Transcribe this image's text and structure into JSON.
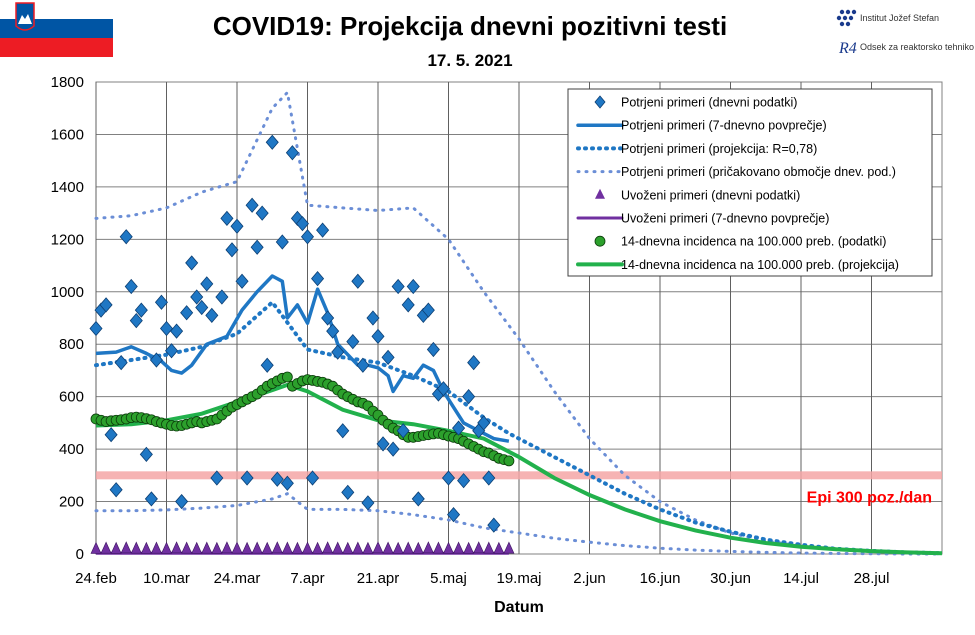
{
  "header": {
    "title": "COVID19: Projekcija dnevni pozitivni testi",
    "date": "17. 5. 2021",
    "institute": "Institut Jožef Stefan",
    "department": "Odsek za reaktorsko tehniko",
    "logo_mark": "R4"
  },
  "colors": {
    "blue": "#1f77c4",
    "light_blue": "#6b8ed6",
    "purple": "#7030a0",
    "green": "#22b14c",
    "green_marker": "#2ca02c",
    "threshold": "#f4a6a6",
    "threshold_text": "#ff0000"
  },
  "chart_data": {
    "type": "line",
    "title": "COVID19: Projekcija dnevni pozitivni testi",
    "subtitle": "17. 5. 2021",
    "xlabel": "Datum",
    "ylabel": "",
    "ylim": [
      0,
      1800
    ],
    "yticks": [
      0,
      200,
      400,
      600,
      800,
      1000,
      1200,
      1400,
      1600,
      1800
    ],
    "xlim": [
      "2021-02-24",
      "2021-08-11"
    ],
    "xticks": [
      "24.feb",
      "10.mar",
      "24.mar",
      "7.apr",
      "21.apr",
      "5.maj",
      "19.maj",
      "2.jun",
      "16.jun",
      "30.jun",
      "14.jul",
      "28.jul"
    ],
    "grid": true,
    "legend_position": "top-right",
    "threshold": {
      "value": 300,
      "label": "Epi 300 poz./dan"
    },
    "legend": [
      "Potrjeni primeri (dnevni podatki)",
      "Potrjeni primeri (7-dnevno povprečje)",
      "Potrjeni primeri (projekcija: R=0,78)",
      "Potrjeni primeri (pričakovano območje dnev. pod.)",
      "Uvoženi primeri (dnevni podatki)",
      "Uvoženi primeri (7-dnevno povprečje)",
      "14-dnevna incidenca na 100.000 preb. (podatki)",
      "14-dnevna incidenca na 100.000 preb. (projekcija)"
    ],
    "series": [
      {
        "name": "Potrjeni primeri (dnevni podatki)",
        "style": "diamond",
        "x_day": [
          0,
          1,
          2,
          3,
          4,
          5,
          6,
          7,
          8,
          9,
          10,
          11,
          12,
          13,
          14,
          15,
          16,
          17,
          18,
          19,
          20,
          21,
          22,
          23,
          24,
          25,
          26,
          27,
          28,
          29,
          30,
          31,
          32,
          33,
          34,
          35,
          36,
          37,
          38,
          39,
          40,
          41,
          42,
          43,
          44,
          45,
          46,
          47,
          48,
          49,
          50,
          51,
          52,
          53,
          54,
          55,
          56,
          57,
          58,
          59,
          60,
          61,
          62,
          63,
          64,
          65,
          66,
          67,
          68,
          69,
          70,
          71,
          72,
          73,
          74,
          75,
          76,
          77,
          78,
          79,
          80,
          81,
          82
        ],
        "values": [
          860,
          930,
          950,
          455,
          245,
          730,
          1210,
          1020,
          890,
          930,
          380,
          210,
          740,
          960,
          860,
          775,
          850,
          200,
          920,
          1110,
          980,
          940,
          1030,
          910,
          290,
          980,
          1280,
          1160,
          1250,
          1040,
          290,
          1330,
          1170,
          1300,
          720,
          1570,
          285,
          1190,
          270,
          1530,
          1280,
          1260,
          1210,
          290,
          1050,
          1235,
          900,
          850,
          770,
          470,
          235,
          810,
          1040,
          720,
          195,
          900,
          830,
          420,
          750,
          400,
          1020,
          470,
          950,
          1020,
          210,
          910,
          930,
          780,
          610,
          630,
          290,
          150,
          480,
          280,
          600,
          730,
          470,
          500,
          290,
          110,
          0,
          0,
          0
        ]
      },
      {
        "name": "Potrjeni primeri (7-dnevno povprečje)",
        "style": "line",
        "x_day": [
          0,
          4,
          7,
          10,
          13,
          15,
          17,
          19,
          22,
          26,
          29,
          32,
          35,
          37,
          38,
          40,
          42,
          44,
          46,
          48,
          50,
          52,
          54,
          56,
          58,
          59,
          61,
          63,
          65,
          67,
          69,
          71,
          73,
          76,
          79,
          82
        ],
        "values": [
          765,
          770,
          790,
          765,
          735,
          700,
          690,
          720,
          800,
          830,
          930,
          1000,
          1060,
          1040,
          900,
          950,
          880,
          1010,
          920,
          800,
          760,
          720,
          720,
          710,
          680,
          620,
          680,
          670,
          720,
          700,
          620,
          560,
          500,
          470,
          440,
          430
        ]
      },
      {
        "name": "Potrjeni primeri (projekcija: R=0,78)",
        "style": "dotted",
        "x_day": [
          0,
          7,
          14,
          21,
          28,
          35,
          42,
          49,
          56,
          63,
          70,
          77,
          82,
          90,
          98,
          105,
          112,
          119,
          126,
          133,
          140,
          147,
          154,
          161,
          168
        ],
        "values": [
          720,
          740,
          760,
          790,
          840,
          960,
          780,
          750,
          730,
          680,
          620,
          520,
          460,
          380,
          300,
          230,
          170,
          120,
          85,
          55,
          35,
          20,
          12,
          6,
          3
        ]
      },
      {
        "name": "Potrjeni primeri (pričakovano območje dnev. pod.) – zgornja meja",
        "style": "sparse-dotted",
        "x_day": [
          0,
          7,
          14,
          21,
          28,
          35,
          38,
          42,
          49,
          56,
          63,
          70,
          77,
          84,
          91,
          98,
          105,
          112,
          119,
          126,
          133,
          140,
          147,
          154,
          161,
          168
        ],
        "values": [
          1280,
          1290,
          1320,
          1380,
          1420,
          1700,
          1760,
          1330,
          1320,
          1310,
          1320,
          1200,
          1000,
          820,
          620,
          440,
          300,
          200,
          130,
          80,
          50,
          30,
          18,
          10,
          5,
          2
        ]
      },
      {
        "name": "Potrjeni primeri (pričakovano območje dnev. pod.) – spodnja meja",
        "style": "sparse-dotted",
        "x_day": [
          0,
          7,
          14,
          21,
          28,
          35,
          38,
          42,
          49,
          56,
          63,
          70,
          77,
          84,
          91,
          98,
          105,
          112,
          119,
          126,
          133,
          140,
          147,
          154,
          161,
          168
        ],
        "values": [
          165,
          165,
          168,
          175,
          185,
          210,
          230,
          170,
          170,
          165,
          150,
          130,
          100,
          80,
          60,
          45,
          32,
          22,
          15,
          10,
          6,
          4,
          2,
          1,
          0,
          0
        ]
      },
      {
        "name": "Uvoženi primeri (dnevni podatki)",
        "style": "triangle",
        "x_day": [
          0,
          2,
          4,
          6,
          8,
          10,
          12,
          14,
          16,
          18,
          20,
          22,
          24,
          26,
          28,
          30,
          32,
          34,
          36,
          38,
          40,
          42,
          44,
          46,
          48,
          50,
          52,
          54,
          56,
          58,
          60,
          62,
          64,
          66,
          68,
          70,
          72,
          74,
          76,
          78,
          80,
          82
        ],
        "values": [
          2,
          3,
          2,
          4,
          3,
          2,
          3,
          2,
          4,
          3,
          2,
          3,
          2,
          4,
          3,
          2,
          3,
          2,
          4,
          3,
          2,
          3,
          2,
          4,
          3,
          2,
          3,
          2,
          4,
          3,
          2,
          3,
          2,
          4,
          3,
          2,
          3,
          2,
          4,
          3,
          2,
          3
        ]
      },
      {
        "name": "Uvoženi primeri (7-dnevno povprečje)",
        "style": "line",
        "x_day": [
          0,
          82
        ],
        "values": [
          3,
          3
        ]
      },
      {
        "name": "14-dnevna incidenca na 100.000 preb. (podatki)",
        "style": "circle",
        "x_day": [
          0,
          1,
          2,
          3,
          4,
          5,
          6,
          7,
          8,
          9,
          10,
          11,
          12,
          13,
          14,
          15,
          16,
          17,
          18,
          19,
          20,
          21,
          22,
          23,
          24,
          25,
          26,
          27,
          28,
          29,
          30,
          31,
          32,
          33,
          34,
          35,
          36,
          37,
          38,
          39,
          40,
          41,
          42,
          43,
          44,
          45,
          46,
          47,
          48,
          49,
          50,
          51,
          52,
          53,
          54,
          55,
          56,
          57,
          58,
          59,
          60,
          61,
          62,
          63,
          64,
          65,
          66,
          67,
          68,
          69,
          70,
          71,
          72,
          73,
          74,
          75,
          76,
          77,
          78,
          79,
          80,
          81,
          82
        ],
        "values": [
          515,
          510,
          505,
          508,
          510,
          512,
          515,
          520,
          522,
          520,
          516,
          512,
          505,
          500,
          495,
          490,
          488,
          490,
          495,
          500,
          505,
          500,
          505,
          510,
          515,
          530,
          545,
          560,
          570,
          580,
          590,
          600,
          610,
          625,
          640,
          650,
          660,
          670,
          675,
          640,
          650,
          660,
          665,
          662,
          658,
          655,
          648,
          640,
          625,
          610,
          600,
          590,
          580,
          575,
          565,
          545,
          530,
          510,
          495,
          480,
          470,
          455,
          445,
          445,
          448,
          452,
          455,
          458,
          460,
          455,
          450,
          445,
          440,
          430,
          420,
          410,
          400,
          390,
          385,
          375,
          365,
          360,
          355
        ]
      },
      {
        "name": "14-dnevna incidenca na 100.000 preb. (projekcija)",
        "style": "line",
        "x_day": [
          0,
          7,
          14,
          21,
          28,
          35,
          38,
          42,
          49,
          56,
          63,
          70,
          77,
          84,
          91,
          98,
          105,
          112,
          119,
          126,
          133,
          140,
          147,
          154,
          161,
          168
        ],
        "values": [
          490,
          495,
          510,
          535,
          580,
          625,
          645,
          620,
          550,
          510,
          495,
          470,
          440,
          370,
          290,
          225,
          170,
          125,
          90,
          62,
          42,
          28,
          18,
          11,
          6,
          3
        ]
      }
    ]
  }
}
